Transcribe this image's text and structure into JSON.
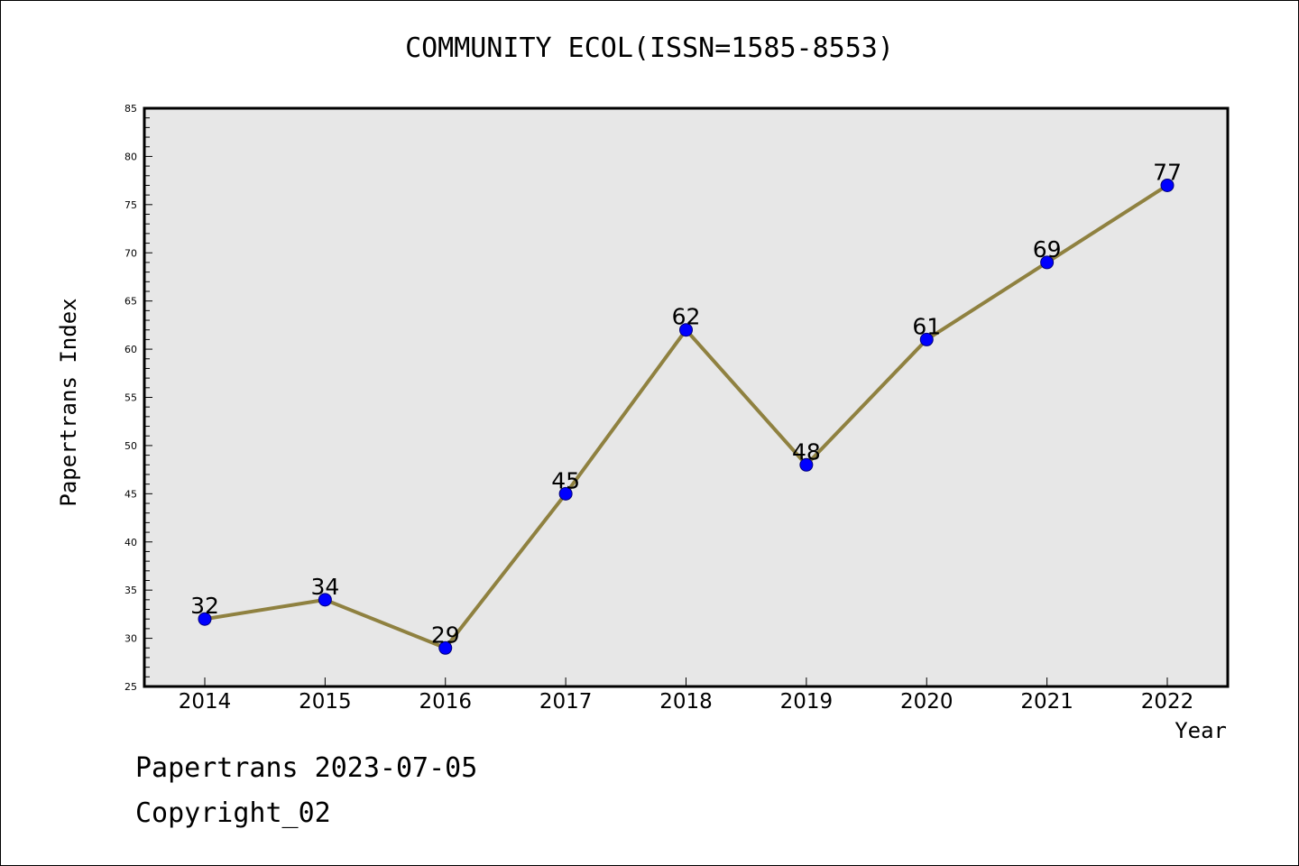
{
  "chart_data": {
    "type": "line",
    "title": "COMMUNITY ECOL(ISSN=1585-8553)",
    "xlabel": "Year",
    "ylabel": "Papertrans Index",
    "categories": [
      "2014",
      "2015",
      "2016",
      "2017",
      "2018",
      "2019",
      "2020",
      "2021",
      "2022"
    ],
    "series": [
      {
        "values": [
          32,
          34,
          29,
          45,
          62,
          48,
          61,
          69,
          77
        ]
      }
    ],
    "ylim": [
      25,
      85
    ],
    "y_ticks": [
      25,
      30,
      35,
      40,
      45,
      50,
      55,
      60,
      65,
      70,
      75,
      80,
      85
    ],
    "grid": false,
    "plot_background": "#e7e7e7",
    "line_color": "#8f8140",
    "marker_color": "#0000ff"
  },
  "footer": {
    "line1": "Papertrans 2023-07-05",
    "line2": "Copyright_02"
  }
}
